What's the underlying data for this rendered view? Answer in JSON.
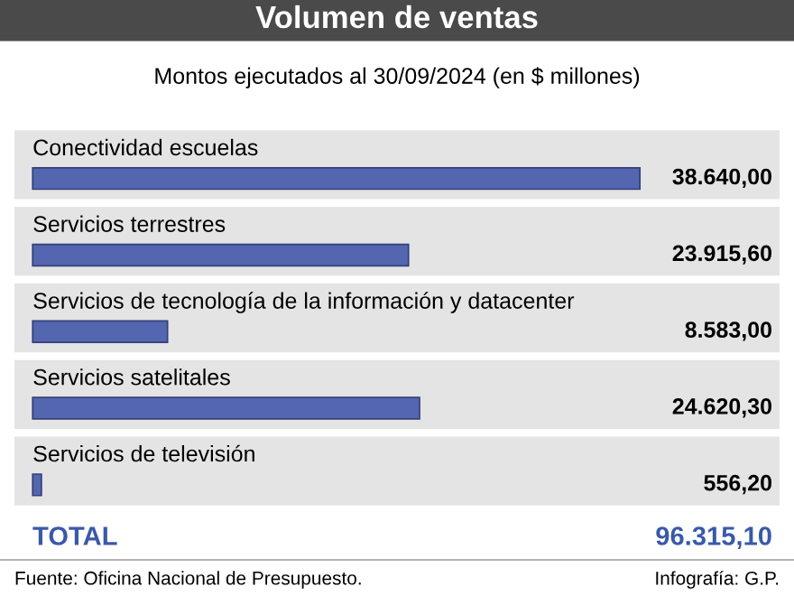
{
  "chart_data": {
    "type": "bar",
    "orientation": "horizontal",
    "title": "Volumen de ventas",
    "subtitle": "Montos ejecutados al 30/09/2024 (en $ millones)",
    "categories": [
      "Conectividad escuelas",
      "Servicios terrestres",
      "Servicios de tecnología de la información y datacenter",
      "Servicios satelitales",
      "Servicios de televisión"
    ],
    "values": [
      38640.0,
      23915.6,
      8583.0,
      24620.3,
      556.2
    ],
    "value_labels": [
      "38.640,00",
      "23.915,60",
      "8.583,00",
      "24.620,30",
      "556,20"
    ],
    "color": "#5566b0",
    "annotations": [
      "TOTAL",
      "Fuente: Oficina Nacional de Presupuesto.",
      "Infografía: G.P.",
      "96.315,10"
    ],
    "legend": false
  }
}
